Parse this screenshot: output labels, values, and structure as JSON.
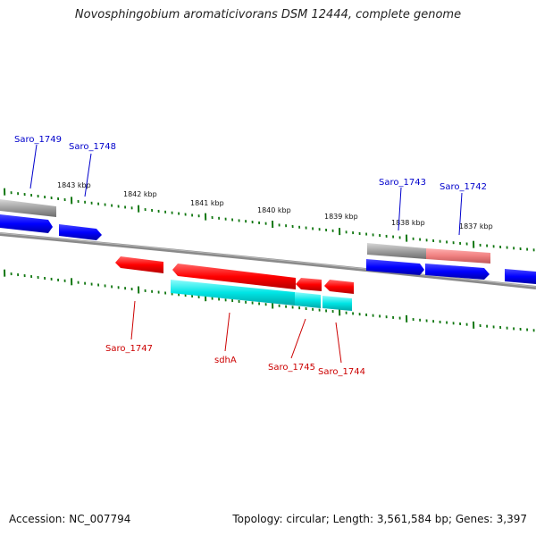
{
  "title": "Novosphingobium aromaticivorans DSM 12444, complete genome",
  "footer": {
    "accession": "Accession: NC_007794",
    "summary": "Topology: circular; Length: 3,561,584 bp; Genes: 3,397"
  },
  "colors": {
    "forward_gene": "#0000ff",
    "reverse_gene": "#ff0000",
    "rna_like": "#00e5e5",
    "grey_track": "#a0a0a0",
    "pink_track": "#f08080",
    "tick": "#117711",
    "label_blue": "#0000cc",
    "label_red": "#cc0000"
  },
  "kbp_ticks": [
    {
      "label": "1843 kbp"
    },
    {
      "label": "1842 kbp"
    },
    {
      "label": "1841 kbp"
    },
    {
      "label": "1840 kbp"
    },
    {
      "label": "1839 kbp"
    },
    {
      "label": "1838 kbp"
    },
    {
      "label": "1837 kbp"
    }
  ],
  "genes": {
    "forward": [
      {
        "label": "Saro_1749"
      },
      {
        "label": "Saro_1748"
      },
      {
        "label": "Saro_1743"
      },
      {
        "label": "Saro_1742"
      }
    ],
    "reverse": [
      {
        "label": "Saro_1747"
      },
      {
        "label": "sdhA"
      },
      {
        "label": "Saro_1745"
      },
      {
        "label": "Saro_1744"
      }
    ]
  }
}
